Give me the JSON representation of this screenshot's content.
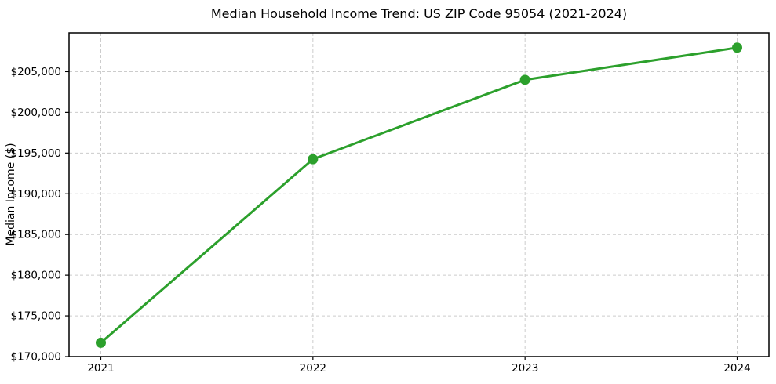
{
  "chart_data": {
    "type": "line",
    "title": "Median Household Income Trend: US ZIP Code 95054 (2021-2024)",
    "ylabel": "Median Income ($)",
    "xlabel": "",
    "categories": [
      "2021",
      "2022",
      "2023",
      "2024"
    ],
    "series": [
      {
        "values": [
          171700,
          194250,
          204000,
          207950
        ],
        "color": "#2ca02c",
        "marker": "circle"
      }
    ],
    "ylim": [
      170000,
      209760
    ],
    "yticks": [
      170000,
      175000,
      180000,
      185000,
      190000,
      195000,
      200000,
      205000
    ],
    "ytick_labels": [
      "$170,000",
      "$175,000",
      "$180,000",
      "$185,000",
      "$190,000",
      "$195,000",
      "$200,000",
      "$205,000"
    ],
    "xtick_labels": [
      "2021",
      "2022",
      "2023",
      "2024"
    ],
    "grid": true,
    "grid_color": "#cccccc",
    "grid_style": "dashed",
    "frame_color": "#000000",
    "background_color": "#ffffff",
    "legend": "none",
    "line_width": 3,
    "marker_size": 6.5
  }
}
